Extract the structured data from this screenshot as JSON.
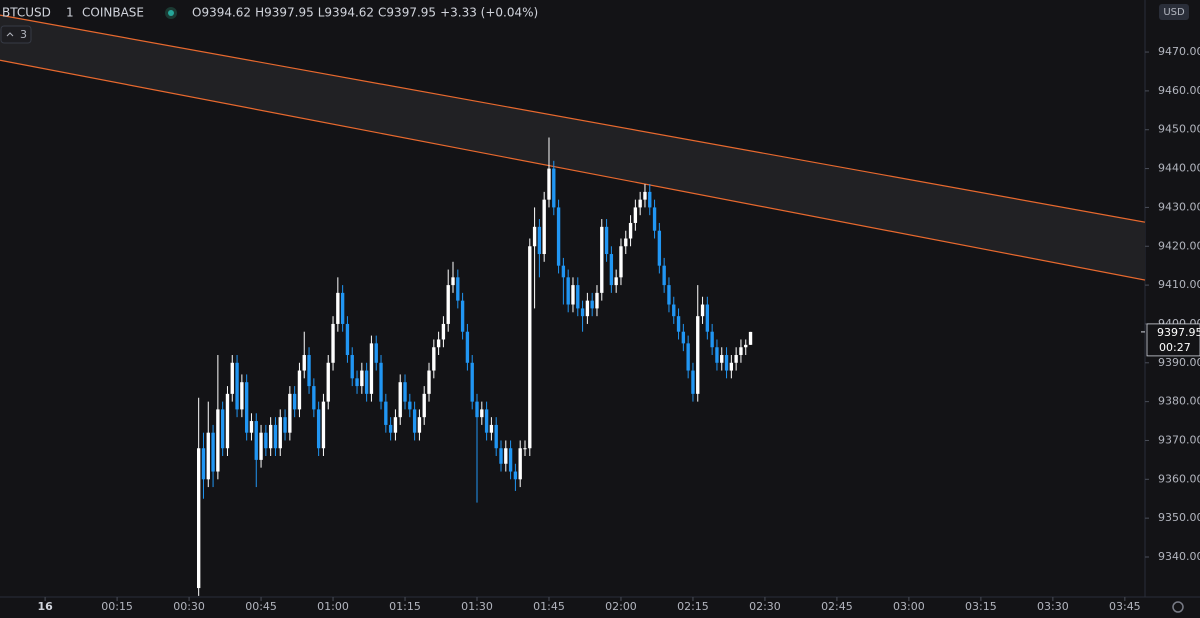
{
  "chart_data": {
    "type": "candlestick",
    "symbol": "BTCUSD",
    "interval": "1",
    "exchange": "COINBASE",
    "legend_text": [
      "O9394.62",
      "H9397.95",
      "L9394.62",
      "C9397.95",
      "+3.33 (+0.04%)"
    ],
    "currency": "USD",
    "indicator_count": "3",
    "countdown": "00:27",
    "price_tag": "9397.95",
    "up_color": "#ffffff",
    "down_color": "#2196f3",
    "channel_color": "#e8692e",
    "channel_fill": "#212124",
    "xlim": [
      -9.4,
      229.2
    ],
    "ylim": [
      9329.7,
      9483.4
    ],
    "xticks": [
      {
        "value": 0,
        "label": "16"
      },
      {
        "value": 15,
        "label": "00:15"
      },
      {
        "value": 30,
        "label": "00:30"
      },
      {
        "value": 45,
        "label": "00:45"
      },
      {
        "value": 60,
        "label": "01:00"
      },
      {
        "value": 75,
        "label": "01:15"
      },
      {
        "value": 90,
        "label": "01:30"
      },
      {
        "value": 105,
        "label": "01:45"
      },
      {
        "value": 120,
        "label": "02:00"
      },
      {
        "value": 135,
        "label": "02:15"
      },
      {
        "value": 150,
        "label": "02:30"
      },
      {
        "value": 165,
        "label": "02:45"
      },
      {
        "value": 180,
        "label": "03:00"
      },
      {
        "value": 195,
        "label": "03:15"
      },
      {
        "value": 210,
        "label": "03:30"
      },
      {
        "value": 225,
        "label": "03:45"
      }
    ],
    "yticks": [
      {
        "value": 9340,
        "label": "9340.00"
      },
      {
        "value": 9350,
        "label": "9350.00"
      },
      {
        "value": 9360,
        "label": "9360.00"
      },
      {
        "value": 9370,
        "label": "9370.00"
      },
      {
        "value": 9380,
        "label": "9380.00"
      },
      {
        "value": 9390,
        "label": "9390.00"
      },
      {
        "value": 9400,
        "label": "9400.00"
      },
      {
        "value": 9410,
        "label": "9410.00"
      },
      {
        "value": 9420,
        "label": "9420.00"
      },
      {
        "value": 9430,
        "label": "9430.00"
      },
      {
        "value": 9440,
        "label": "9440.00"
      },
      {
        "value": 9450,
        "label": "9450.00"
      },
      {
        "value": 9460,
        "label": "9460.00"
      },
      {
        "value": 9470,
        "label": "9470.00"
      }
    ],
    "channel": {
      "x": [
        -9.4,
        229.2
      ],
      "upper": [
        9479.5,
        9426.2
      ],
      "lower": [
        9467.9,
        9411.3
      ]
    },
    "x": [
      32,
      33,
      34,
      35,
      36,
      37,
      38,
      39,
      40,
      41,
      42,
      43,
      44,
      45,
      46,
      47,
      48,
      49,
      50,
      51,
      52,
      53,
      54,
      55,
      56,
      57,
      58,
      59,
      60,
      61,
      62,
      63,
      64,
      65,
      66,
      67,
      68,
      69,
      70,
      71,
      72,
      73,
      74,
      75,
      76,
      77,
      78,
      79,
      80,
      81,
      82,
      83,
      84,
      85,
      86,
      87,
      88,
      89,
      90,
      91,
      92,
      93,
      94,
      95,
      96,
      97,
      98,
      99,
      100,
      101,
      102,
      103,
      104,
      105,
      106,
      107,
      108,
      109,
      110,
      111,
      112,
      113,
      114,
      115,
      116,
      117,
      118,
      119,
      120,
      121,
      122,
      123,
      124,
      125,
      126,
      127,
      128,
      129,
      130,
      131,
      132,
      133,
      134,
      135,
      136,
      137,
      138,
      139,
      140,
      141,
      142,
      143,
      144,
      145,
      146,
      147
    ],
    "open": [
      9332,
      9368,
      9360,
      9372,
      9362,
      9378,
      9368,
      9382,
      9390,
      9378,
      9385,
      9372,
      9375,
      9365,
      9372,
      9368,
      9374,
      9368,
      9376,
      9372,
      9382,
      9378,
      9388,
      9392,
      9384,
      9378,
      9368,
      9380,
      9390,
      9400,
      9408,
      9400,
      9392,
      9386,
      9384,
      9388,
      9382,
      9395,
      9390,
      9380,
      9374,
      9372,
      9376,
      9385,
      9380,
      9378,
      9372,
      9376,
      9382,
      9388,
      9394,
      9396,
      9400,
      9410,
      9412,
      9406,
      9398,
      9390,
      9380,
      9376,
      9378,
      9372,
      9374,
      9368,
      9364,
      9368,
      9362,
      9360,
      9368,
      9368,
      9420,
      9425,
      9418,
      9432,
      9440,
      9430,
      9415,
      9412,
      9405,
      9410,
      9404,
      9402,
      9406,
      9404,
      9408,
      9425,
      9418,
      9410,
      9412,
      9420,
      9422,
      9426,
      9430,
      9432,
      9434,
      9430,
      9424,
      9415,
      9410,
      9405,
      9402,
      9398,
      9395,
      9388,
      9382,
      9402,
      9405,
      9398,
      9394,
      9390,
      9392,
      9388,
      9390,
      9392,
      9394,
      9394.62
    ],
    "high": [
      9381,
      9372,
      9380,
      9374,
      9392,
      9380,
      9384,
      9392,
      9392,
      9387,
      9387,
      9377,
      9377,
      9374,
      9374,
      9376,
      9376,
      9378,
      9378,
      9384,
      9384,
      9390,
      9398,
      9394,
      9386,
      9380,
      9382,
      9392,
      9402,
      9412,
      9410,
      9402,
      9394,
      9388,
      9390,
      9390,
      9397,
      9397,
      9392,
      9382,
      9376,
      9378,
      9387,
      9387,
      9382,
      9380,
      9378,
      9384,
      9390,
      9396,
      9398,
      9402,
      9414,
      9416,
      9414,
      9408,
      9400,
      9392,
      9382,
      9380,
      9380,
      9376,
      9376,
      9370,
      9370,
      9370,
      9364,
      9370,
      9370,
      9422,
      9430,
      9427,
      9434,
      9448,
      9442,
      9432,
      9417,
      9414,
      9412,
      9412,
      9406,
      9408,
      9408,
      9410,
      9427,
      9427,
      9420,
      9414,
      9422,
      9424,
      9428,
      9432,
      9434,
      9436,
      9436,
      9432,
      9426,
      9417,
      9412,
      9407,
      9404,
      9400,
      9397,
      9390,
      9410,
      9407,
      9407,
      9400,
      9396,
      9394,
      9394,
      9392,
      9394,
      9396,
      9396,
      9397.95
    ],
    "low": [
      9330,
      9355,
      9358,
      9358,
      9360,
      9366,
      9366,
      9380,
      9376,
      9376,
      9370,
      9370,
      9358,
      9363,
      9366,
      9366,
      9366,
      9366,
      9370,
      9370,
      9376,
      9376,
      9386,
      9382,
      9376,
      9366,
      9366,
      9378,
      9388,
      9398,
      9398,
      9390,
      9384,
      9382,
      9382,
      9380,
      9380,
      9388,
      9378,
      9372,
      9370,
      9370,
      9374,
      9378,
      9376,
      9370,
      9370,
      9374,
      9380,
      9386,
      9392,
      9394,
      9398,
      9408,
      9404,
      9396,
      9388,
      9378,
      9354,
      9374,
      9370,
      9370,
      9366,
      9362,
      9362,
      9360,
      9357,
      9358,
      9366,
      9366,
      9404,
      9412,
      9416,
      9430,
      9428,
      9413,
      9405,
      9403,
      9403,
      9402,
      9398,
      9400,
      9402,
      9402,
      9406,
      9416,
      9408,
      9408,
      9410,
      9418,
      9420,
      9424,
      9428,
      9430,
      9428,
      9422,
      9413,
      9408,
      9403,
      9400,
      9396,
      9393,
      9386,
      9380,
      9380,
      9400,
      9396,
      9392,
      9388,
      9388,
      9386,
      9386,
      9388,
      9390,
      9392,
      9394.62
    ],
    "close": [
      9368,
      9360,
      9372,
      9362,
      9378,
      9368,
      9382,
      9390,
      9378,
      9385,
      9372,
      9375,
      9365,
      9372,
      9368,
      9374,
      9368,
      9376,
      9372,
      9382,
      9378,
      9388,
      9392,
      9384,
      9378,
      9368,
      9380,
      9390,
      9400,
      9408,
      9400,
      9392,
      9386,
      9384,
      9388,
      9382,
      9395,
      9390,
      9380,
      9374,
      9372,
      9376,
      9385,
      9380,
      9378,
      9372,
      9376,
      9382,
      9388,
      9394,
      9396,
      9400,
      9410,
      9412,
      9406,
      9398,
      9390,
      9380,
      9376,
      9378,
      9372,
      9374,
      9368,
      9364,
      9368,
      9362,
      9360,
      9368,
      9368,
      9420,
      9425,
      9418,
      9432,
      9440,
      9430,
      9415,
      9412,
      9405,
      9410,
      9404,
      9402,
      9406,
      9404,
      9408,
      9425,
      9418,
      9410,
      9412,
      9420,
      9422,
      9426,
      9430,
      9432,
      9434,
      9430,
      9424,
      9415,
      9410,
      9405,
      9402,
      9398,
      9395,
      9388,
      9382,
      9402,
      9405,
      9398,
      9394,
      9390,
      9392,
      9388,
      9390,
      9392,
      9394,
      9394.62,
      9397.95
    ]
  }
}
